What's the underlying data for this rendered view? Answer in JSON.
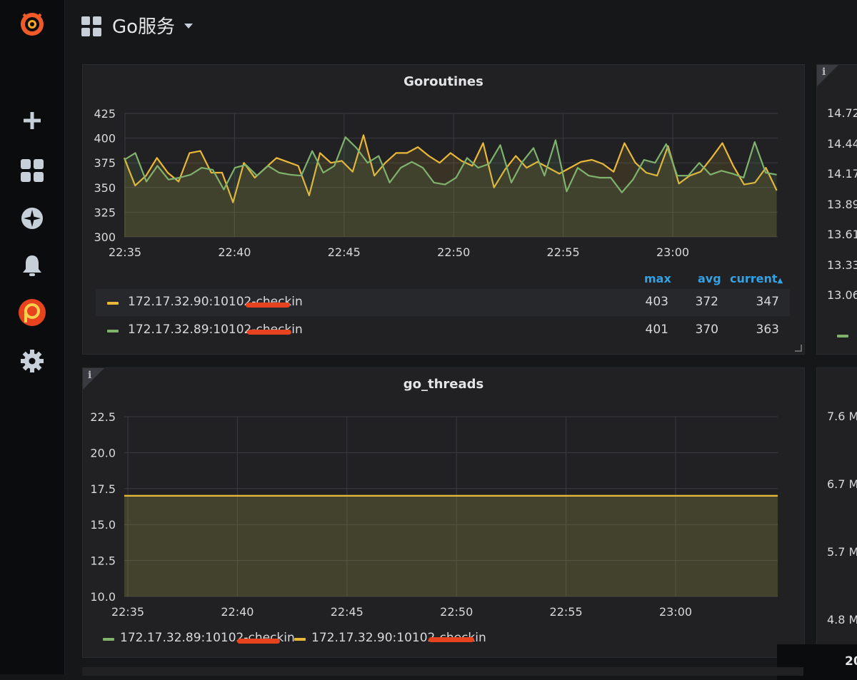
{
  "dashboard": {
    "title": "Go服务"
  },
  "sidebar": {
    "items": [
      {
        "icon": "grafana-logo-icon"
      },
      {
        "icon": "plus-icon"
      },
      {
        "icon": "dashboards-icon"
      },
      {
        "icon": "explore-compass-icon"
      },
      {
        "icon": "alerting-bell-icon"
      },
      {
        "icon": "pyroscope-logo-icon"
      },
      {
        "icon": "gear-icon"
      }
    ]
  },
  "colors": {
    "yellow": "#eab839",
    "green": "#7eb26d",
    "legend_header": "#33a2e5",
    "redaction": "#e8431f"
  },
  "panels": {
    "goroutines": {
      "title": "Goroutines",
      "legend_headers": {
        "max": "max",
        "avg": "avg",
        "current": "current"
      },
      "legend": [
        {
          "label": "172.17.32.90:10102-checkin",
          "max": "403",
          "avg": "372",
          "current": "347"
        },
        {
          "label": "172.17.32.89:10102-checkin",
          "max": "401",
          "avg": "370",
          "current": "363"
        }
      ]
    },
    "go_threads": {
      "title": "go_threads",
      "legend": [
        {
          "label": "172.17.32.89:10102-checkin"
        },
        {
          "label": "172.17.32.90:10102-checkin"
        }
      ]
    }
  },
  "right_panels": {
    "top_ticks": [
      "14.72",
      "14.44",
      "14.17",
      "13.89",
      "13.61",
      "13.33",
      "13.06"
    ],
    "bottom_ticks": [
      "7.6 M",
      "6.7 M",
      "5.7 M",
      "4.8 M"
    ]
  },
  "bottom_tab": {
    "label": "20"
  },
  "chart_data": [
    {
      "type": "line",
      "title": "Goroutines",
      "x_ticks": [
        "22:35",
        "22:40",
        "22:45",
        "22:50",
        "22:55",
        "23:00"
      ],
      "y_ticks": [
        "425",
        "400",
        "375",
        "350",
        "325",
        "300"
      ],
      "ylim": [
        300,
        425
      ],
      "grid": true,
      "fill": true,
      "series": [
        {
          "name": "172.17.32.90:10102-checkin",
          "color": "#eab839",
          "values": [
            380,
            352,
            362,
            380,
            365,
            356,
            385,
            387,
            365,
            365,
            335,
            375,
            360,
            370,
            380,
            376,
            372,
            342,
            385,
            375,
            377,
            366,
            403,
            362,
            375,
            385,
            385,
            391,
            382,
            375,
            385,
            377,
            372,
            395,
            350,
            368,
            382,
            370,
            376,
            370,
            364,
            370,
            376,
            378,
            374,
            366,
            395,
            375,
            365,
            362,
            392,
            354,
            362,
            366,
            380,
            395,
            372,
            353,
            355,
            370,
            347
          ],
          "note": "x spans 22:35 to ~23:04:40 at ~30s intervals"
        },
        {
          "name": "172.17.32.89:10102-checkin",
          "color": "#7eb26d",
          "values": [
            378,
            385,
            356,
            372,
            358,
            360,
            363,
            370,
            368,
            348,
            370,
            373,
            362,
            372,
            365,
            363,
            362,
            387,
            365,
            372,
            401,
            390,
            375,
            382,
            355,
            370,
            376,
            370,
            355,
            353,
            360,
            380,
            370,
            374,
            393,
            355,
            376,
            390,
            362,
            398,
            346,
            370,
            362,
            360,
            360,
            345,
            358,
            378,
            375,
            394,
            362,
            362,
            375,
            363,
            367,
            364,
            360,
            396,
            365,
            363
          ],
          "note": ""
        }
      ]
    },
    {
      "type": "line",
      "title": "go_threads",
      "x_ticks": [
        "22:35",
        "22:40",
        "22:45",
        "22:50",
        "22:55",
        "23:00"
      ],
      "y_ticks": [
        "22.5",
        "20.0",
        "17.5",
        "15.0",
        "12.5",
        "10.0"
      ],
      "ylim": [
        10,
        22.5
      ],
      "grid": true,
      "fill": true,
      "series": [
        {
          "name": "172.17.32.89:10102-checkin",
          "color": "#7eb26d",
          "values": [
            17,
            17
          ]
        },
        {
          "name": "172.17.32.90:10102-checkin",
          "color": "#eab839",
          "values": [
            17,
            17
          ]
        }
      ]
    }
  ]
}
